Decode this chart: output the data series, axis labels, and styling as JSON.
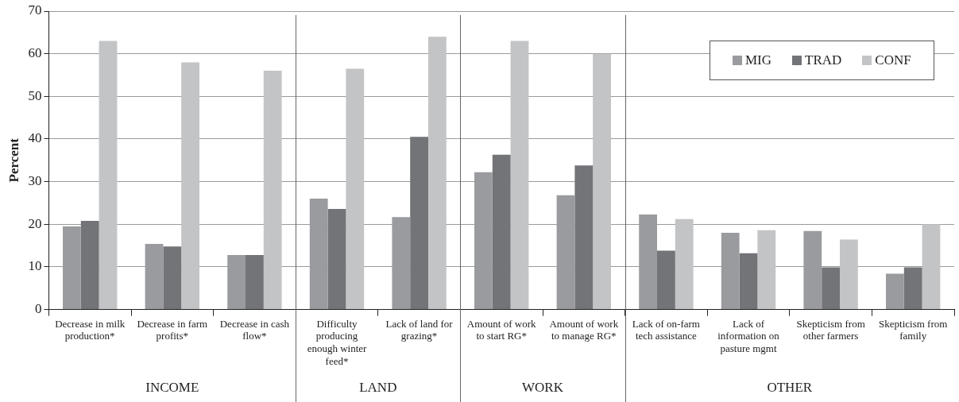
{
  "chart_data": {
    "type": "bar",
    "ylabel": "Percent",
    "categories": [
      "Decrease in milk production*",
      "Decrease in farm profits*",
      "Decrease in cash flow*",
      "Difficulty producing enough winter feed*",
      "Lack of land for grazing*",
      "Amount of work to start RG*",
      "Amount of work to manage RG*",
      "Lack of on-farm tech assistance",
      "Lack of information on pasture mgmt",
      "Skepticism from other farmers",
      "Skepticism from family"
    ],
    "series": [
      {
        "name": "MIG",
        "color": "#9a9b9f",
        "values": [
          19.5,
          15.4,
          12.8,
          26,
          21.7,
          32.2,
          26.8,
          22.3,
          18,
          18.4,
          8.4
        ]
      },
      {
        "name": "TRAD",
        "color": "#737478",
        "values": [
          20.8,
          14.8,
          12.8,
          23.6,
          40.5,
          36.3,
          33.8,
          13.8,
          13.2,
          9.9,
          9.9
        ]
      },
      {
        "name": "CONF",
        "color": "#c3c4c6",
        "values": [
          63,
          58,
          56,
          56.5,
          64,
          63,
          60,
          21.2,
          18.6,
          16.4,
          20
        ]
      }
    ],
    "ylim": [
      0,
      70
    ],
    "yticks": [
      0,
      10,
      20,
      30,
      40,
      50,
      60,
      70
    ],
    "grid": "y",
    "legend": "top right",
    "annotations": [
      "INCOME",
      "LAND",
      "WORK",
      "OTHER"
    ]
  }
}
